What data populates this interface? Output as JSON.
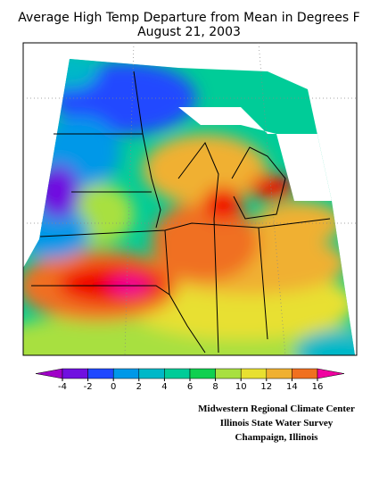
{
  "header": {
    "title": "Average High Temp Departure from Mean in Degrees F",
    "date": "August 21, 2003"
  },
  "colorbar": {
    "ticks": [
      -4,
      -2,
      0,
      2,
      4,
      6,
      8,
      10,
      12,
      14,
      16
    ],
    "colors": [
      "#a000c8",
      "#7010e0",
      "#2048ff",
      "#0098e8",
      "#00b8c8",
      "#00cc98",
      "#10d050",
      "#a8e040",
      "#e8e030",
      "#f0b030",
      "#f07020",
      "#f00000",
      "#f000a0"
    ]
  },
  "credits": [
    "Midwestern Regional Climate Center",
    "Illinois State Water Survey",
    "Champaign, Illinois"
  ]
}
